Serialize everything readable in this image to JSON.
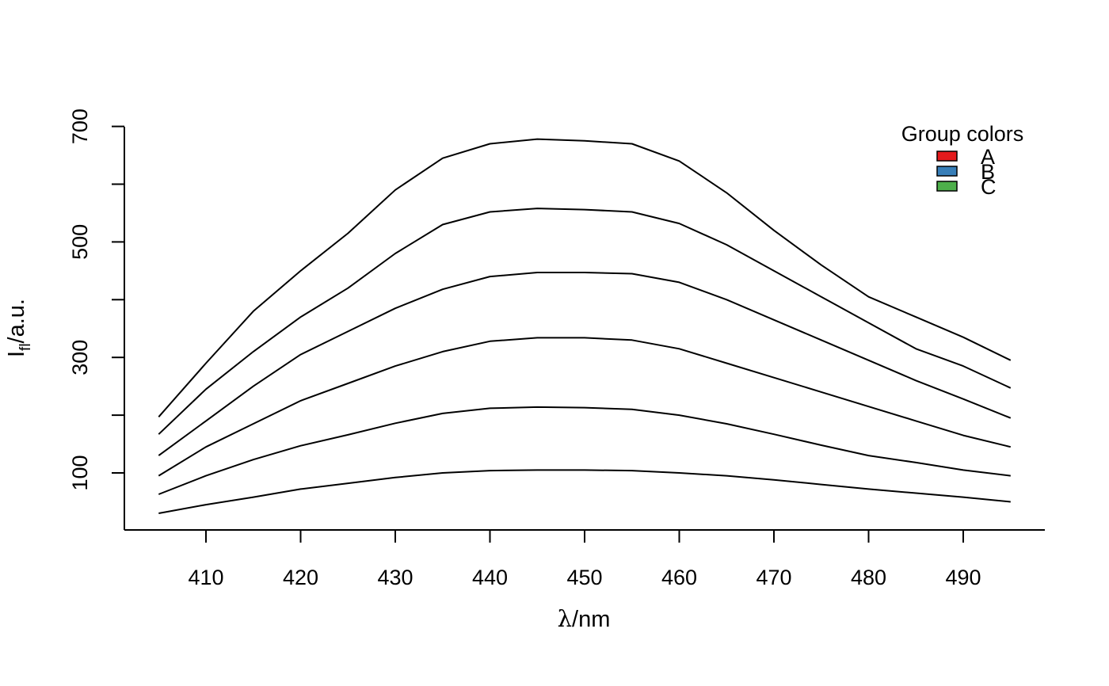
{
  "chart_data": {
    "type": "line",
    "xlim": [
      401.5,
      500
    ],
    "ylim": [
      0,
      700
    ],
    "x_ticks": [
      410,
      420,
      430,
      440,
      450,
      460,
      470,
      480,
      490
    ],
    "y_ticks": [
      100,
      300,
      500,
      700
    ],
    "y_minor_ticks": [
      100,
      200,
      300,
      400,
      500,
      600,
      700
    ],
    "xlabel": {
      "main": "λ",
      "suffix": "/nm"
    },
    "ylabel": {
      "main": "I",
      "sub": "fl",
      "suffix": "/a.u."
    },
    "grid": false,
    "legend": {
      "title": "Group colors",
      "placement": "top-right",
      "entries": [
        {
          "label": "A",
          "color": "#e41a1c"
        },
        {
          "label": "B",
          "color": "#377eb8"
        },
        {
          "label": "C",
          "color": "#4daf4a"
        }
      ]
    },
    "line_color": "#000000",
    "series": [
      {
        "x": [
          405,
          410,
          415,
          420,
          425,
          430,
          435,
          440,
          445,
          450,
          455,
          460,
          465,
          470,
          475,
          480,
          485,
          490,
          495
        ],
        "values": [
          30,
          45,
          58,
          72,
          82,
          92,
          100,
          104,
          105,
          105,
          104,
          100,
          95,
          88,
          80,
          72,
          65,
          58,
          50
        ]
      },
      {
        "x": [
          405,
          410,
          415,
          420,
          425,
          430,
          435,
          440,
          445,
          450,
          455,
          460,
          465,
          470,
          475,
          480,
          485,
          490,
          495
        ],
        "values": [
          63,
          95,
          123,
          147,
          166,
          186,
          203,
          212,
          214,
          213,
          210,
          200,
          185,
          167,
          148,
          130,
          118,
          105,
          95
        ]
      },
      {
        "x": [
          405,
          410,
          415,
          420,
          425,
          430,
          435,
          440,
          445,
          450,
          455,
          460,
          465,
          470,
          475,
          480,
          485,
          490,
          495
        ],
        "values": [
          95,
          145,
          185,
          225,
          255,
          285,
          310,
          328,
          334,
          334,
          330,
          315,
          290,
          265,
          240,
          215,
          190,
          165,
          145
        ]
      },
      {
        "x": [
          405,
          410,
          415,
          420,
          425,
          430,
          435,
          440,
          445,
          450,
          455,
          460,
          465,
          470,
          475,
          480,
          485,
          490,
          495
        ],
        "values": [
          130,
          190,
          250,
          305,
          345,
          385,
          418,
          440,
          447,
          447,
          445,
          430,
          400,
          365,
          330,
          295,
          260,
          228,
          195
        ]
      },
      {
        "x": [
          405,
          410,
          415,
          420,
          425,
          430,
          435,
          440,
          445,
          450,
          455,
          460,
          465,
          470,
          475,
          480,
          485,
          490,
          495
        ],
        "values": [
          167,
          245,
          310,
          370,
          420,
          480,
          530,
          552,
          558,
          556,
          552,
          532,
          495,
          450,
          405,
          360,
          315,
          285,
          247
        ]
      },
      {
        "x": [
          405,
          410,
          415,
          420,
          425,
          430,
          435,
          440,
          445,
          450,
          455,
          460,
          465,
          470,
          475,
          480,
          485,
          490,
          495
        ],
        "values": [
          197,
          290,
          380,
          450,
          515,
          590,
          645,
          670,
          678,
          675,
          670,
          640,
          585,
          520,
          460,
          405,
          370,
          335,
          295
        ]
      }
    ]
  }
}
